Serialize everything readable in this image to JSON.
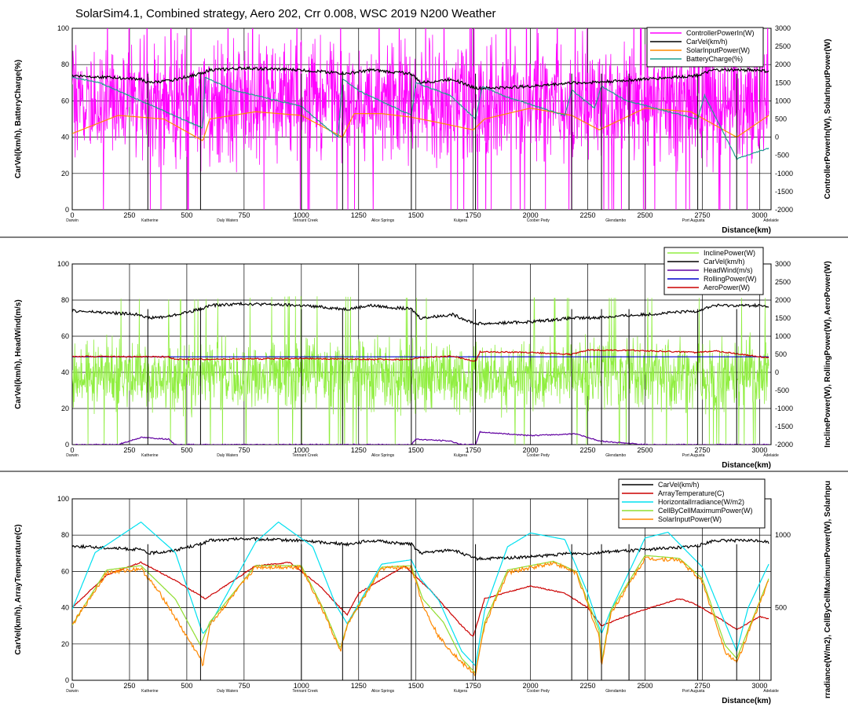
{
  "title": "SolarSim4.1, Combined strategy, Aero 202, Crr 0.008, WSC 2019 N200 Weather",
  "chart_data": [
    {
      "type": "line",
      "ylabel_left": "CarVel(km/h), BatteryCharge(%)",
      "ylabel_right": "ControllerPowerIn(W), SolarInputPower(W)",
      "xlabel": "Distance(km)",
      "xlim": [
        0,
        3050
      ],
      "ylim_left": [
        0,
        100
      ],
      "ylim_right": [
        -2000,
        3000
      ],
      "xticks": [
        "0",
        "250",
        "500",
        "750",
        "1000",
        "1250",
        "1500",
        "1750",
        "2000",
        "2250",
        "2500",
        "2750",
        "3000"
      ],
      "yticks_left": [
        "0",
        "20",
        "40",
        "60",
        "80",
        "100"
      ],
      "yticks_right": [
        "-2000",
        "-1500",
        "-1000",
        "-500",
        "0",
        "500",
        "1000",
        "1500",
        "2000",
        "2500",
        "3000"
      ],
      "towns": [
        "Darwin",
        "Katherine",
        "Daly Waters",
        "Tennant Creek",
        "Alice Springs",
        "Kulgera",
        "Coober Pedy",
        "Glendambo",
        "Port Augusta",
        "Adelaide"
      ],
      "legend": [
        "ControllerPowerIn(W)",
        "CarVel(km/h)",
        "SolarInputPower(W)",
        "BatteryCharge(%)"
      ],
      "series": [
        {
          "name": "ControllerPowerIn(W)",
          "color": "#ff00ff",
          "axis": "right",
          "kind": "noise",
          "x": [
            0,
            300,
            600,
            900,
            1200,
            1500,
            1800,
            2100,
            2400,
            2700,
            3040
          ],
          "values": [
            900,
            1100,
            900,
            1100,
            1000,
            950,
            900,
            1000,
            1000,
            950,
            900
          ]
        },
        {
          "name": "CarVel(km/h)",
          "color": "#000000",
          "axis": "left",
          "x": [
            0,
            150,
            300,
            330,
            420,
            560,
            600,
            750,
            1000,
            1200,
            1300,
            1480,
            1520,
            1660,
            1760,
            1800,
            2000,
            2180,
            2250,
            2500,
            2730,
            2800,
            3000,
            3040
          ],
          "values": [
            74,
            73,
            72,
            70,
            71,
            75,
            77,
            78,
            77,
            75,
            77,
            75,
            70,
            72,
            67,
            67,
            68,
            70,
            70,
            72,
            74,
            77,
            77,
            76
          ]
        },
        {
          "name": "SolarInputPower(W)",
          "color": "#ff8c00",
          "axis": "right",
          "x": [
            0,
            200,
            400,
            570,
            600,
            800,
            1000,
            1180,
            1230,
            1350,
            1480,
            1600,
            1750,
            1800,
            2000,
            2180,
            2300,
            2500,
            2700,
            2900,
            3040
          ],
          "values": [
            100,
            600,
            500,
            -100,
            500,
            700,
            600,
            0,
            650,
            650,
            550,
            400,
            200,
            500,
            800,
            600,
            200,
            800,
            700,
            0,
            600
          ]
        },
        {
          "name": "BatteryCharge(%)",
          "color": "#20a090",
          "axis": "left",
          "x": [
            0,
            120,
            300,
            570,
            580,
            700,
            1000,
            1160,
            1180,
            1260,
            1480,
            1500,
            1650,
            1760,
            1790,
            1900,
            2150,
            2180,
            2280,
            2310,
            2420,
            2730,
            2760,
            2900,
            3040
          ],
          "values": [
            73,
            70,
            60,
            45,
            73,
            66,
            57,
            40,
            72,
            65,
            52,
            70,
            63,
            50,
            68,
            62,
            52,
            66,
            56,
            68,
            60,
            50,
            63,
            28,
            34
          ]
        }
      ]
    },
    {
      "type": "line",
      "ylabel_left": "CarVel(km/h), HeadWind(m/s)",
      "ylabel_right": "InclinePower(W), RollingPower(W), AeroPower(W)",
      "xlabel": "Distance(km)",
      "xlim": [
        0,
        3050
      ],
      "ylim_left": [
        0,
        100
      ],
      "ylim_right": [
        -2000,
        3000
      ],
      "xticks": [
        "0",
        "250",
        "500",
        "750",
        "1000",
        "1250",
        "1500",
        "1750",
        "2000",
        "2250",
        "2500",
        "2750",
        "3000"
      ],
      "yticks_left": [
        "0",
        "20",
        "40",
        "60",
        "80",
        "100"
      ],
      "yticks_right": [
        "-2000",
        "-1500",
        "-1000",
        "-500",
        "0",
        "500",
        "1000",
        "1500",
        "2000",
        "2500",
        "3000"
      ],
      "towns": [
        "Darwin",
        "Katherine",
        "Daly Waters",
        "Tennant Creek",
        "Alice Springs",
        "Kulgera",
        "Coober Pedy",
        "Glendambo",
        "Port Augusta",
        "Adelaide"
      ],
      "legend": [
        "InclinePower(W)",
        "CarVel(km/h)",
        "HeadWind(m/s)",
        "RollingPower(W)",
        "AeroPower(W)"
      ],
      "series": [
        {
          "name": "InclinePower(W)",
          "color": "#90ee40",
          "axis": "right",
          "kind": "noise",
          "x": [
            0,
            500,
            1000,
            1500,
            2000,
            2500,
            3040
          ],
          "values": [
            -100,
            -150,
            -50,
            -100,
            -100,
            -100,
            -100
          ]
        },
        {
          "name": "CarVel(km/h)",
          "color": "#000000",
          "axis": "left",
          "x": [
            0,
            150,
            300,
            330,
            420,
            560,
            600,
            750,
            1000,
            1200,
            1300,
            1480,
            1520,
            1660,
            1760,
            1800,
            2000,
            2180,
            2250,
            2500,
            2730,
            2800,
            3000,
            3040
          ],
          "values": [
            74,
            73,
            72,
            70,
            71,
            75,
            77,
            78,
            77,
            75,
            77,
            75,
            70,
            72,
            67,
            67,
            68,
            70,
            70,
            72,
            74,
            77,
            77,
            76
          ]
        },
        {
          "name": "HeadWind(m/s)",
          "color": "#6000a0",
          "axis": "left",
          "x": [
            0,
            200,
            300,
            420,
            450,
            1480,
            1500,
            1650,
            1700,
            1760,
            1780,
            2000,
            2200,
            2300,
            2500,
            3040
          ],
          "values": [
            0,
            0,
            4,
            3,
            0,
            0,
            3,
            2,
            0,
            0,
            7,
            5,
            6,
            2,
            0,
            0
          ]
        },
        {
          "name": "RollingPower(W)",
          "color": "#0000cc",
          "axis": "right",
          "x": [
            0,
            3040
          ],
          "values": [
            430,
            430
          ]
        },
        {
          "name": "AeroPower(W)",
          "color": "#cc0000",
          "axis": "right",
          "x": [
            0,
            420,
            450,
            1000,
            1480,
            1500,
            1660,
            1760,
            1780,
            2000,
            2180,
            2250,
            2500,
            2730,
            2800,
            3040
          ],
          "values": [
            440,
            430,
            360,
            380,
            350,
            400,
            450,
            300,
            570,
            550,
            500,
            620,
            600,
            550,
            600,
            400
          ]
        }
      ]
    },
    {
      "type": "line",
      "ylabel_left": "CarVel(km/h), ArrayTemperature(C)",
      "ylabel_right": "rradiance(W/m2), CellByCellMaximumPower(W), SolarInpu",
      "xlabel": "Distance(km)",
      "xlim": [
        0,
        3050
      ],
      "ylim_left": [
        0,
        100
      ],
      "ylim_right": [
        0,
        1250
      ],
      "xticks": [
        "0",
        "250",
        "500",
        "750",
        "1000",
        "1250",
        "1500",
        "1750",
        "2000",
        "2250",
        "2500",
        "2750",
        "3000"
      ],
      "yticks_left": [
        "0",
        "20",
        "40",
        "60",
        "80",
        "100"
      ],
      "yticks_right": [
        "500",
        "1000"
      ],
      "towns": [
        "Darwin",
        "Katherine",
        "Daly Waters",
        "Tennant Creek",
        "Alice Springs",
        "Kulgera",
        "Coober Pedy",
        "Glendambo",
        "Port Augusta",
        "Adelaide"
      ],
      "legend": [
        "CarVel(km/h)",
        "ArrayTemperature(C)",
        "HorizontalIrradiance(W/m2)",
        "CellByCellMaximumPower(W)",
        "SolarInputPower(W)"
      ],
      "series": [
        {
          "name": "CarVel(km/h)",
          "color": "#000000",
          "axis": "left",
          "x": [
            0,
            150,
            300,
            330,
            420,
            560,
            600,
            750,
            1000,
            1200,
            1300,
            1480,
            1520,
            1660,
            1760,
            1800,
            2000,
            2180,
            2250,
            2500,
            2730,
            2800,
            3000,
            3040
          ],
          "values": [
            74,
            73,
            72,
            70,
            71,
            75,
            77,
            78,
            77,
            75,
            77,
            75,
            70,
            72,
            67,
            67,
            68,
            70,
            70,
            72,
            74,
            77,
            77,
            76
          ]
        },
        {
          "name": "ArrayTemperature(C)",
          "color": "#cc0000",
          "axis": "left",
          "x": [
            0,
            150,
            300,
            450,
            580,
            620,
            800,
            950,
            1080,
            1200,
            1250,
            1450,
            1560,
            1700,
            1750,
            1800,
            2000,
            2150,
            2250,
            2310,
            2450,
            2650,
            2720,
            2800,
            2900,
            3000,
            3040
          ],
          "values": [
            40,
            58,
            65,
            55,
            45,
            48,
            63,
            65,
            52,
            36,
            48,
            63,
            50,
            30,
            24,
            45,
            52,
            48,
            40,
            30,
            37,
            45,
            42,
            36,
            28,
            35,
            34
          ]
        },
        {
          "name": "HorizontalIrradiance(W/m2)",
          "color": "#00e0f0",
          "axis": "right",
          "x": [
            0,
            100,
            300,
            450,
            570,
            600,
            800,
            900,
            1050,
            1150,
            1200,
            1350,
            1480,
            1520,
            1600,
            1700,
            1760,
            1800,
            1900,
            2000,
            2150,
            2250,
            2310,
            2350,
            2500,
            2600,
            2750,
            2900,
            2950,
            3040
          ],
          "values": [
            490,
            880,
            1090,
            880,
            320,
            380,
            950,
            1090,
            920,
            520,
            390,
            800,
            830,
            700,
            550,
            200,
            100,
            480,
            920,
            1015,
            970,
            600,
            320,
            480,
            980,
            1020,
            780,
            200,
            500,
            800
          ]
        },
        {
          "name": "CellByCellMaximumPower(W)",
          "color": "#90dd30",
          "axis": "right",
          "x": [
            0,
            150,
            300,
            450,
            560,
            600,
            800,
            1000,
            1100,
            1170,
            1200,
            1350,
            1480,
            1530,
            1620,
            1700,
            1760,
            1800,
            1900,
            2100,
            2200,
            2300,
            2310,
            2350,
            2500,
            2650,
            2750,
            2850,
            2900,
            3040
          ],
          "values": [
            380,
            760,
            790,
            560,
            240,
            400,
            790,
            790,
            480,
            220,
            380,
            780,
            790,
            560,
            400,
            150,
            50,
            400,
            760,
            820,
            750,
            340,
            120,
            480,
            860,
            840,
            700,
            240,
            150,
            700
          ]
        },
        {
          "name": "SolarInputPower(W)",
          "color": "#ff8800",
          "axis": "right",
          "x": [
            0,
            150,
            300,
            400,
            500,
            560,
            570,
            600,
            800,
            1000,
            1100,
            1170,
            1200,
            1350,
            1480,
            1530,
            1600,
            1700,
            1760,
            1800,
            1900,
            2100,
            2200,
            2300,
            2310,
            2350,
            2500,
            2650,
            2750,
            2850,
            2900,
            3040
          ],
          "values": [
            380,
            740,
            770,
            560,
            300,
            150,
            100,
            380,
            780,
            780,
            460,
            200,
            380,
            770,
            780,
            520,
            300,
            120,
            40,
            380,
            740,
            810,
            740,
            300,
            100,
            460,
            840,
            830,
            680,
            200,
            120,
            690
          ]
        }
      ]
    }
  ]
}
